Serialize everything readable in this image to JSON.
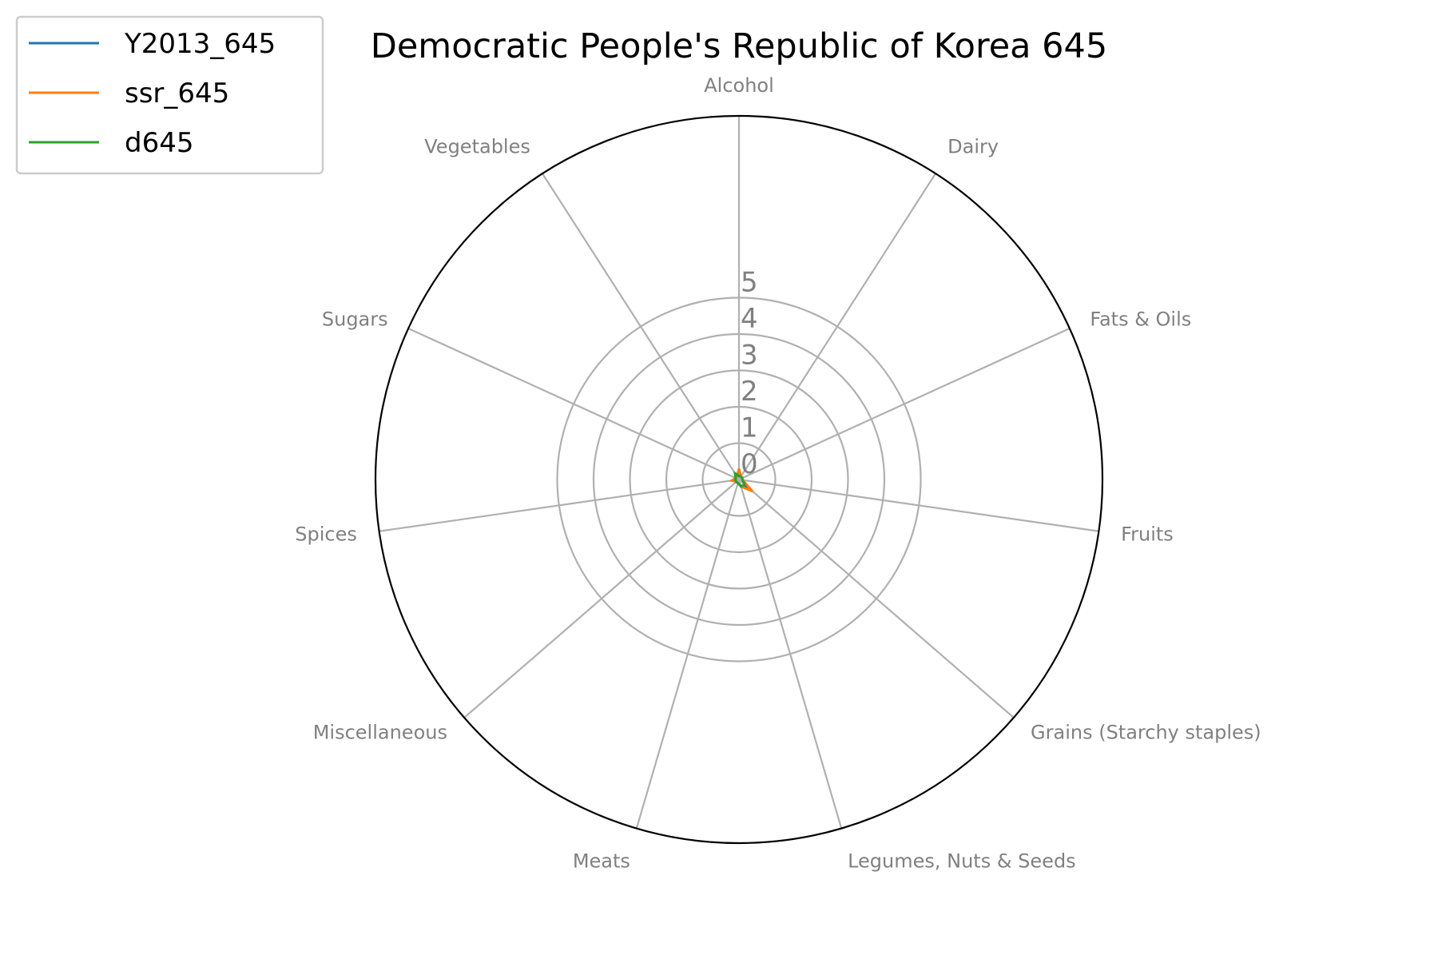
{
  "chart_data": {
    "type": "radar",
    "title": "Democratic People's Republic of Korea 645",
    "categories": [
      "Alcohol",
      "Dairy",
      "Fats & Oils",
      "Fruits",
      "Grains (Starchy staples)",
      "Legumes, Nuts & Seeds",
      "Meats",
      "Miscellaneous",
      "Spices",
      "Sugars",
      "Vegetables"
    ],
    "rlim": [
      0,
      10
    ],
    "rticks": [
      0,
      1,
      2,
      3,
      4,
      5
    ],
    "grid": true,
    "legend_position": "top-left",
    "series": [
      {
        "name": "Y2013_645",
        "color": "#1f77b4",
        "values": [
          0.1,
          0.1,
          0.1,
          0.1,
          0.3,
          0.2,
          0.1,
          0.1,
          0.1,
          0.1,
          0.1
        ]
      },
      {
        "name": "ssr_645",
        "color": "#ff7f0e",
        "values": [
          0.3,
          0.1,
          0.1,
          0.1,
          0.5,
          0.2,
          0.1,
          0.1,
          0.2,
          0.1,
          0.1
        ]
      },
      {
        "name": "d645",
        "color": "#2ca02c",
        "values": [
          0.1,
          0.1,
          0.1,
          0.1,
          0.2,
          0.2,
          0.1,
          0.1,
          0.1,
          0.1,
          0.2
        ]
      }
    ]
  }
}
